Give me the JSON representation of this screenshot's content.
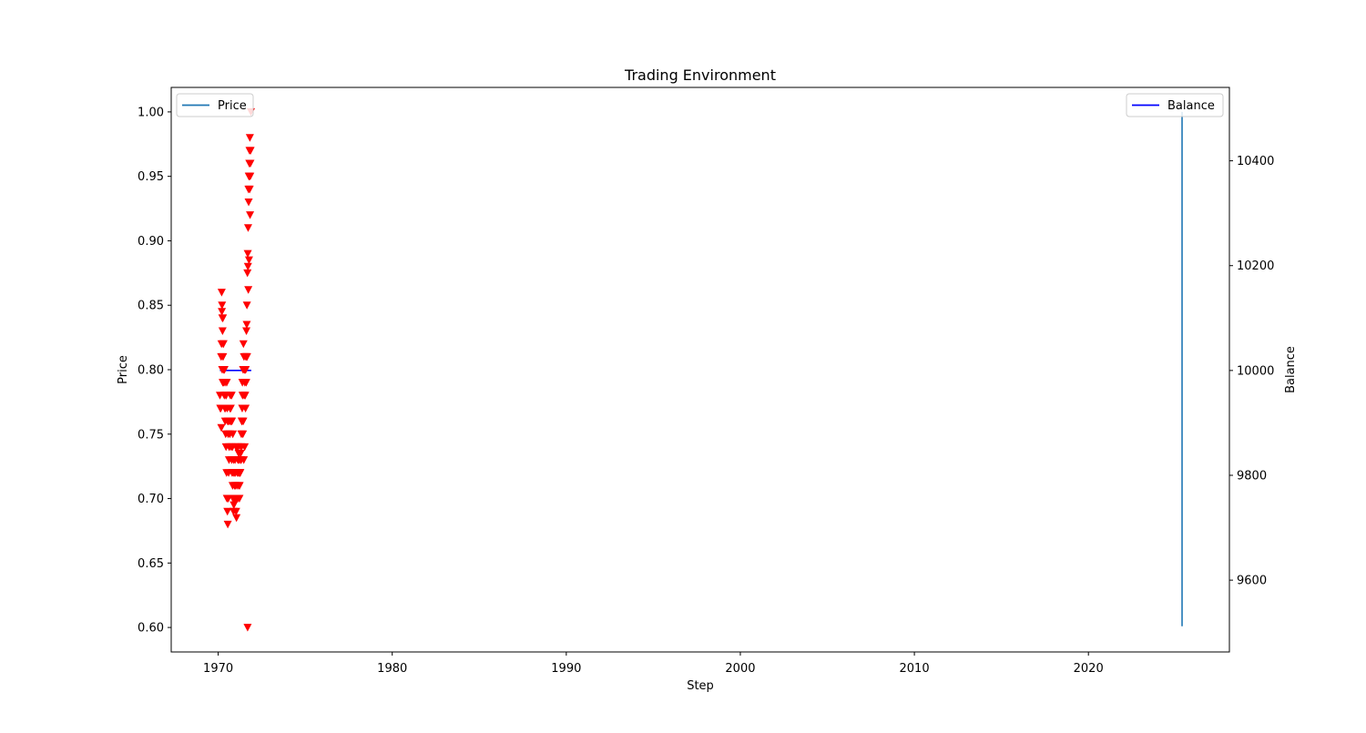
{
  "chart_data": {
    "type": "line",
    "title": "Trading Environment",
    "xlabel": "Step",
    "ylabel": "Price",
    "y2label": "Balance",
    "xlim": [
      1967.3,
      2028.1
    ],
    "ylim": [
      0.581,
      1.019
    ],
    "y2lim": [
      9463,
      10540
    ],
    "xticks": [
      1970,
      1980,
      1990,
      2000,
      2010,
      2020
    ],
    "yticks": [
      0.6,
      0.65,
      0.7,
      0.75,
      0.8,
      0.85,
      0.9,
      0.95,
      1.0
    ],
    "y2ticks": [
      9600,
      9800,
      10000,
      10200,
      10400
    ],
    "grid": false,
    "legends": [
      {
        "position": "upper-left",
        "entries": [
          {
            "label": "Price",
            "color": "#1f77b4",
            "axis": "primary"
          }
        ]
      },
      {
        "position": "upper-right",
        "entries": [
          {
            "label": "Balance",
            "color": "#0000ff",
            "axis": "secondary"
          }
        ]
      }
    ],
    "series": [
      {
        "name": "Price",
        "axis": "primary",
        "kind": "line",
        "color": "#1f77b4",
        "x": [
          2025.38,
          2025.38,
          2025.38,
          2025.38,
          2025.38
        ],
        "y": [
          0.601,
          1.0,
          0.68,
          0.836,
          0.72
        ]
      },
      {
        "name": "Balance",
        "axis": "secondary",
        "kind": "line",
        "color": "#0000ff",
        "x": [
          1970.1,
          1971.9
        ],
        "y": [
          10000,
          10000
        ]
      },
      {
        "name": "",
        "axis": "primary",
        "kind": "scatter",
        "marker": "triangle-down",
        "color": "#ff0000",
        "x": [
          1970.1,
          1970.12,
          1970.15,
          1970.18,
          1970.2,
          1970.22,
          1970.25,
          1970.27,
          1970.3,
          1970.32,
          1970.35,
          1970.38,
          1970.4,
          1970.43,
          1970.45,
          1970.48,
          1970.5,
          1970.53,
          1970.55,
          1970.58,
          1970.6,
          1970.63,
          1970.65,
          1970.68,
          1970.7,
          1970.73,
          1970.75,
          1970.78,
          1970.8,
          1970.83,
          1970.85,
          1970.88,
          1970.9,
          1970.93,
          1970.95,
          1970.98,
          1971.0,
          1971.03,
          1971.05,
          1971.08,
          1971.1,
          1971.13,
          1971.15,
          1971.18,
          1971.2,
          1971.23,
          1971.25,
          1971.28,
          1971.3,
          1971.33,
          1971.35,
          1971.38,
          1971.4,
          1971.43,
          1971.45,
          1971.48,
          1971.5,
          1971.53,
          1971.55,
          1971.58,
          1971.6,
          1971.62,
          1971.65,
          1971.68,
          1971.7,
          1971.72,
          1971.75,
          1971.78,
          1971.8,
          1971.82,
          1971.85,
          1971.88,
          1970.17,
          1970.21,
          1970.24,
          1970.28,
          1970.31,
          1970.36,
          1970.41,
          1970.46,
          1970.52,
          1970.57,
          1970.62,
          1970.67,
          1970.72,
          1970.77,
          1970.82,
          1970.87,
          1970.92,
          1970.97,
          1971.02,
          1971.07,
          1971.12,
          1971.17,
          1971.22,
          1971.27,
          1971.32,
          1971.37,
          1971.42,
          1971.47,
          1971.52,
          1971.57,
          1971.61,
          1971.66,
          1971.71,
          1971.74,
          1971.79,
          1971.83,
          1971.86,
          1971.69,
          1971.73,
          1971.77,
          1971.81,
          1971.84,
          1970.19,
          1970.23,
          1970.26,
          1970.29,
          1970.33,
          1970.39,
          1970.44,
          1970.49,
          1970.54,
          1970.59,
          1970.64,
          1970.69,
          1970.74,
          1970.79,
          1970.84,
          1970.89,
          1970.94,
          1970.99,
          1971.04,
          1971.09,
          1971.14,
          1971.19,
          1971.24,
          1971.29,
          1971.34,
          1971.39,
          1971.44,
          1971.49,
          1971.54,
          1971.59,
          1971.64,
          1971.76
        ],
        "y": [
          0.78,
          0.77,
          0.77,
          0.755,
          0.86,
          0.85,
          0.83,
          0.84,
          0.82,
          0.8,
          0.78,
          0.77,
          0.76,
          0.75,
          0.74,
          0.72,
          0.7,
          0.69,
          0.68,
          0.7,
          0.72,
          0.74,
          0.76,
          0.77,
          0.78,
          0.76,
          0.74,
          0.73,
          0.72,
          0.71,
          0.7,
          0.69,
          0.695,
          0.7,
          0.72,
          0.71,
          0.7,
          0.69,
          0.685,
          0.7,
          0.72,
          0.73,
          0.74,
          0.735,
          0.72,
          0.71,
          0.72,
          0.73,
          0.74,
          0.75,
          0.76,
          0.77,
          0.78,
          0.8,
          0.82,
          0.81,
          0.8,
          0.79,
          0.78,
          0.8,
          0.81,
          0.83,
          0.85,
          0.875,
          0.89,
          0.91,
          0.93,
          0.95,
          0.97,
          0.98,
          0.96,
          1.0,
          0.81,
          0.845,
          0.84,
          0.81,
          0.79,
          0.8,
          0.77,
          0.78,
          0.77,
          0.75,
          0.73,
          0.75,
          0.77,
          0.78,
          0.74,
          0.72,
          0.7,
          0.73,
          0.74,
          0.71,
          0.7,
          0.71,
          0.7,
          0.72,
          0.73,
          0.76,
          0.75,
          0.73,
          0.74,
          0.77,
          0.79,
          0.81,
          0.88,
          0.94,
          0.96,
          0.92,
          0.97,
          0.6,
          0.862,
          0.885,
          0.94,
          0.95,
          0.82,
          0.8,
          0.79,
          0.82,
          0.8,
          0.79,
          0.78,
          0.79,
          0.76,
          0.76,
          0.74,
          0.77,
          0.76,
          0.76,
          0.75,
          0.73,
          0.71,
          0.72,
          0.7,
          0.74,
          0.72,
          0.73,
          0.72,
          0.735,
          0.74,
          0.79,
          0.76,
          0.78,
          0.8,
          0.81,
          0.835,
          0.95
        ]
      }
    ]
  }
}
